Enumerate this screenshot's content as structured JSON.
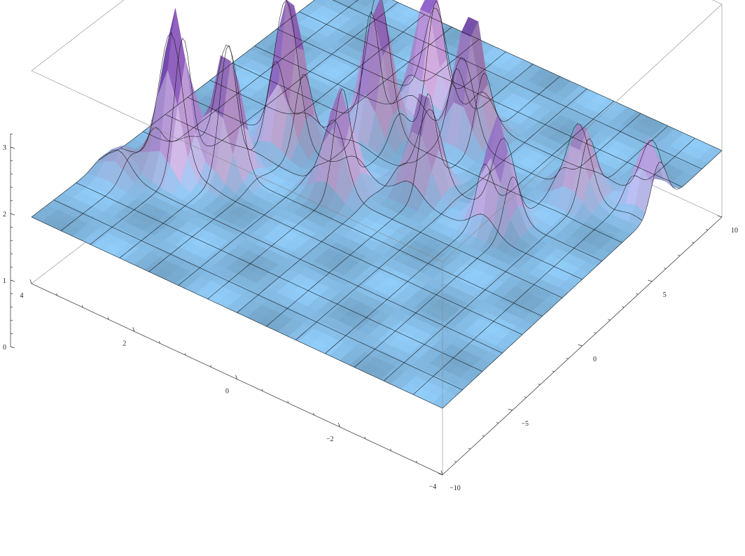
{
  "chart_data": {
    "type": "surface3d",
    "title": "",
    "xlabel": "",
    "ylabel": "",
    "zlabel": "",
    "x_axis": {
      "range": [
        -4,
        4
      ],
      "ticks": [
        {
          "value": -4,
          "label": "−4"
        },
        {
          "value": -2,
          "label": "−2"
        },
        {
          "value": 0,
          "label": "0"
        },
        {
          "value": 2,
          "label": "2"
        },
        {
          "value": 4,
          "label": "4"
        }
      ]
    },
    "y_axis": {
      "range": [
        -10,
        10
      ],
      "ticks": [
        {
          "value": -10,
          "label": "−10"
        },
        {
          "value": -5,
          "label": "−5"
        },
        {
          "value": 0,
          "label": "0"
        },
        {
          "value": 5,
          "label": "5"
        },
        {
          "value": 10,
          "label": "10"
        }
      ]
    },
    "z_axis": {
      "range": [
        0,
        3.2
      ],
      "ticks": [
        {
          "value": 0,
          "label": "0"
        },
        {
          "value": 1,
          "label": "1"
        },
        {
          "value": 2,
          "label": "2"
        },
        {
          "value": 3,
          "label": "3"
        }
      ]
    },
    "baseline": 1,
    "peaks": [
      {
        "x": 3.0,
        "y": -4.0,
        "height": 2.4
      },
      {
        "x": 2.3,
        "y": -2.9,
        "height": 1.9
      },
      {
        "x": 2.0,
        "y": 0.2,
        "height": 2.3
      },
      {
        "x": 0.6,
        "y": -1.0,
        "height": 1.5
      },
      {
        "x": 1.0,
        "y": 2.8,
        "height": 2.1
      },
      {
        "x": 0.7,
        "y": 5.3,
        "height": 1.9
      },
      {
        "x": -0.3,
        "y": 4.8,
        "height": 2.0
      },
      {
        "x": -0.5,
        "y": 1.0,
        "height": 1.5
      },
      {
        "x": -2.0,
        "y": 1.0,
        "height": 1.6
      },
      {
        "x": -2.7,
        "y": 4.4,
        "height": 1.1
      },
      {
        "x": -3.8,
        "y": 5.5,
        "height": 1.0
      },
      {
        "x": 3.6,
        "y": -5.5,
        "height": 0.4
      }
    ],
    "mesh": {
      "x_lines": 15,
      "y_lines": 15
    },
    "colors": {
      "low": "#8ec9f5",
      "mid": "#c9b8f0",
      "high": "#8a5bc8",
      "highlight": "#f2b8c6",
      "mesh": "#111111",
      "box": "#8a8a8a"
    },
    "box": true,
    "grid": false
  }
}
